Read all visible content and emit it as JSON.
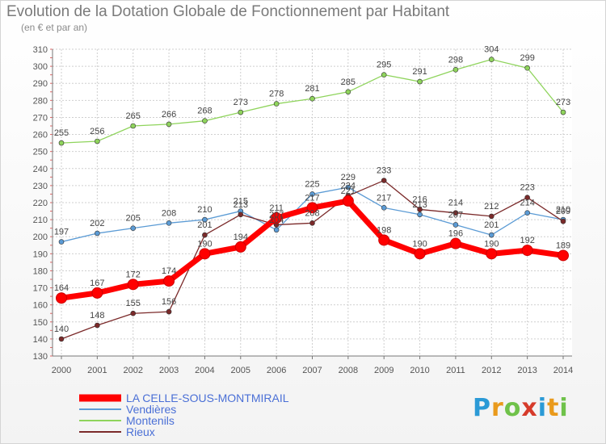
{
  "title": "Evolution de la Dotation Globale de Fonctionnement par Habitant",
  "subtitle": "(en € et par an)",
  "logo": {
    "text": "Proxiti",
    "letters": [
      "P",
      "r",
      "o",
      "x",
      "i",
      "t",
      "i"
    ]
  },
  "chart_data": {
    "type": "line",
    "title": "Evolution de la Dotation Globale de Fonctionnement par Habitant",
    "ylabel": "(en € et par an)",
    "xlabel": "",
    "ylim": [
      130,
      310
    ],
    "yticks": [
      130,
      140,
      150,
      160,
      170,
      180,
      190,
      200,
      210,
      220,
      230,
      240,
      250,
      260,
      270,
      280,
      290,
      300,
      310
    ],
    "categories": [
      "2000",
      "2001",
      "2002",
      "2003",
      "2004",
      "2005",
      "2006",
      "2007",
      "2008",
      "2009",
      "2010",
      "2011",
      "2012",
      "2013",
      "2014"
    ],
    "grid": true,
    "legend_position": "bottom-left",
    "series": [
      {
        "name": "LA CELLE-SOUS-MONTMIRAIL",
        "color": "#ff0000",
        "values": [
          164,
          167,
          172,
          174,
          190,
          194,
          211,
          217,
          221,
          198,
          190,
          196,
          190,
          192,
          189
        ],
        "labels": [
          "164",
          "167",
          "172",
          "174",
          "190",
          "194",
          "211",
          "217",
          "221",
          "198",
          "190",
          "196",
          "190",
          "192",
          "189"
        ]
      },
      {
        "name": "Vendières",
        "color": "#5b9bd5",
        "values": [
          197,
          202,
          205,
          208,
          210,
          215,
          204,
          225,
          229,
          217,
          213,
          207,
          201,
          214,
          210
        ],
        "labels": [
          "197",
          "202",
          "205",
          "208",
          "210",
          "215",
          "204",
          "225",
          "229",
          "217",
          "213",
          "207",
          "201",
          "214",
          "210"
        ]
      },
      {
        "name": "Montenils",
        "color": "#8fd45c",
        "values": [
          255,
          256,
          265,
          266,
          268,
          273,
          278,
          281,
          285,
          295,
          291,
          298,
          304,
          299,
          273
        ],
        "labels": [
          "255",
          "256",
          "265",
          "266",
          "268",
          "273",
          "278",
          "281",
          "285",
          "295",
          "291",
          "298",
          "304",
          "299",
          "273"
        ]
      },
      {
        "name": "Rieux",
        "color": "#7b2a2a",
        "values": [
          140,
          148,
          155,
          156,
          201,
          213,
          207,
          208,
          224,
          233,
          216,
          214,
          212,
          223,
          209
        ],
        "labels": [
          "140",
          "148",
          "155",
          "156",
          "201",
          "213",
          "207",
          "208",
          "224",
          "233",
          "216",
          "214",
          "212",
          "223",
          "209"
        ]
      }
    ]
  }
}
